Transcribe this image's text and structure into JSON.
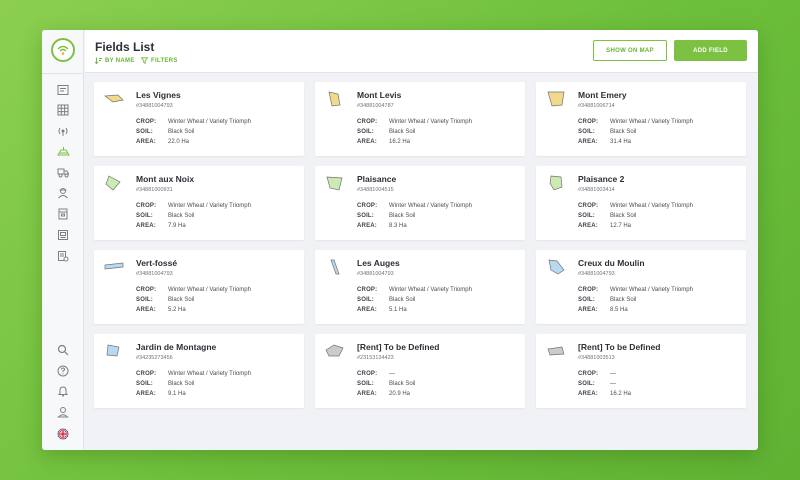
{
  "header": {
    "title": "Fields List",
    "sort_label": "BY NAME",
    "filter_label": "FILTERS",
    "show_on_map_label": "SHOW ON MAP",
    "add_field_label": "ADD FIELD"
  },
  "labels": {
    "crop": "CROP:",
    "soil": "SOIL:",
    "area": "AREA:"
  },
  "colors": {
    "accent": "#7cc142",
    "sidebar_active": "#7cc142"
  },
  "fields": [
    {
      "name": "Les Vignes",
      "id": "#34881004793",
      "crop": "Winter Wheat / Variety Triomph",
      "soil": "Black Soil",
      "area": "22.0 Ha",
      "shape_color": "#f3d98a"
    },
    {
      "name": "Mont Levis",
      "id": "#34881004787",
      "crop": "Winter Wheat / Variety Triomph",
      "soil": "Black Soil",
      "area": "16.2 Ha",
      "shape_color": "#f3d98a"
    },
    {
      "name": "Mont Emery",
      "id": "#34881006714",
      "crop": "Winter Wheat / Variety Triomph",
      "soil": "Black Soil",
      "area": "31.4 Ha",
      "shape_color": "#f3d98a"
    },
    {
      "name": "Mont aux Noix",
      "id": "#34881000931",
      "crop": "Winter Wheat / Variety Triomph",
      "soil": "Black Soil",
      "area": "7.9 Ha",
      "shape_color": "#cdeab0"
    },
    {
      "name": "Plaisance",
      "id": "#34881004515",
      "crop": "Winter Wheat / Variety Triomph",
      "soil": "Black Soil",
      "area": "8.3 Ha",
      "shape_color": "#cdeab0"
    },
    {
      "name": "Plaisance 2",
      "id": "#34881003414",
      "crop": "Winter Wheat / Variety Triomph",
      "soil": "Black Soil",
      "area": "12.7 Ha",
      "shape_color": "#cdeab0"
    },
    {
      "name": "Vert-fossé",
      "id": "#34881004793",
      "crop": "Winter Wheat / Variety Triomph",
      "soil": "Black Soil",
      "area": "5.2 Ha",
      "shape_color": "#b9d9f1"
    },
    {
      "name": "Les Auges",
      "id": "#34881004793",
      "crop": "Winter Wheat / Variety Triomph",
      "soil": "Black Soil",
      "area": "5.1 Ha",
      "shape_color": "#b9d9f1"
    },
    {
      "name": "Creux du Moulin",
      "id": "#34881004793",
      "crop": "Winter Wheat / Variety Triomph",
      "soil": "Black Soil",
      "area": "8.5 Ha",
      "shape_color": "#b9d9f1"
    },
    {
      "name": "Jardin de Montagne",
      "id": "#34235273456",
      "crop": "Winter Wheat / Variety Triomph",
      "soil": "Black Soil",
      "area": "9.1 Ha",
      "shape_color": "#b9d9f1"
    },
    {
      "name": "[Rent] To be Defined",
      "id": "#23153134423",
      "crop": "—",
      "soil": "Black Soil",
      "area": "20.9 Ha",
      "shape_color": "#c9cbce"
    },
    {
      "name": "[Rent] To be Defined",
      "id": "#34881003513",
      "crop": "—",
      "soil": "—",
      "area": "16.2 Ha",
      "shape_color": "#c9cbce"
    }
  ],
  "sidebar": {
    "top_icons": [
      "dashboard-icon",
      "calendar-grid-icon",
      "weather-signal-icon",
      "fields-icon",
      "machinery-icon",
      "worker-icon",
      "warehouse-icon",
      "report-icon",
      "invoice-icon"
    ],
    "bottom_icons": [
      "search-icon",
      "help-icon",
      "notification-bell-icon",
      "user-profile-icon",
      "language-flag-uk-icon"
    ]
  }
}
